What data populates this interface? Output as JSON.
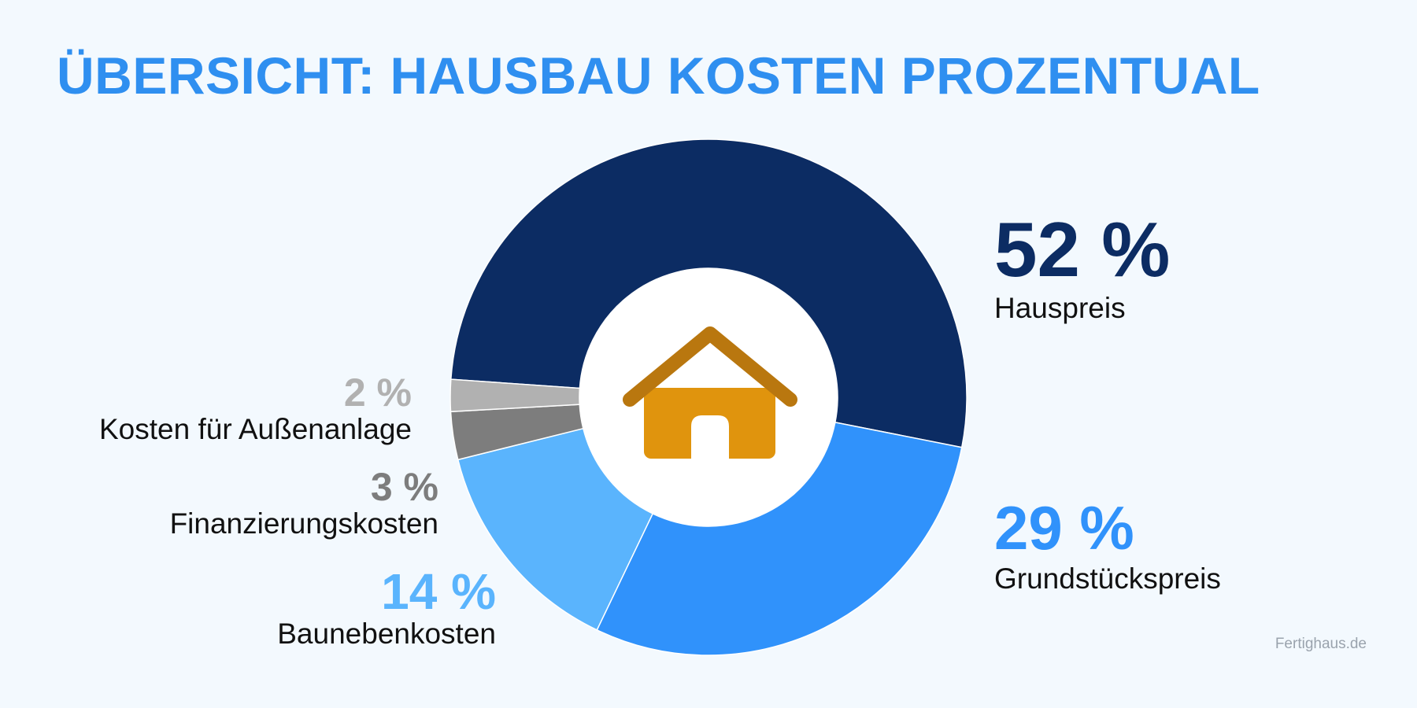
{
  "title": "ÜBERSICHT: HAUSBAU KOSTEN PROZENTUAL",
  "brand": "Fertighaus.de",
  "center_icon": "house-icon",
  "colors": {
    "title": "#2f8ff0",
    "hauspreis": "#0c2c63",
    "grundstueck": "#3092fb",
    "baunebenkosten": "#5ab4fd",
    "finanzierung": "#7d7d7d",
    "aussenanlage": "#b1b1b1",
    "house": "#e0940d",
    "roof": "#b9770f"
  },
  "chart_data": {
    "type": "pie",
    "donut": true,
    "title": "ÜBERSICHT: HAUSBAU KOSTEN PROZENTUAL",
    "slices": [
      {
        "label": "Hauspreis",
        "value": 52,
        "value_label": "52 %"
      },
      {
        "label": "Grundstückspreis",
        "value": 29,
        "value_label": "29 %"
      },
      {
        "label": "Baunebenkosten",
        "value": 14,
        "value_label": "14 %"
      },
      {
        "label": "Finanzierungskosten",
        "value": 3,
        "value_label": "3 %"
      },
      {
        "label": "Kosten für Außenanlage",
        "value": 2,
        "value_label": "2 %"
      }
    ]
  }
}
